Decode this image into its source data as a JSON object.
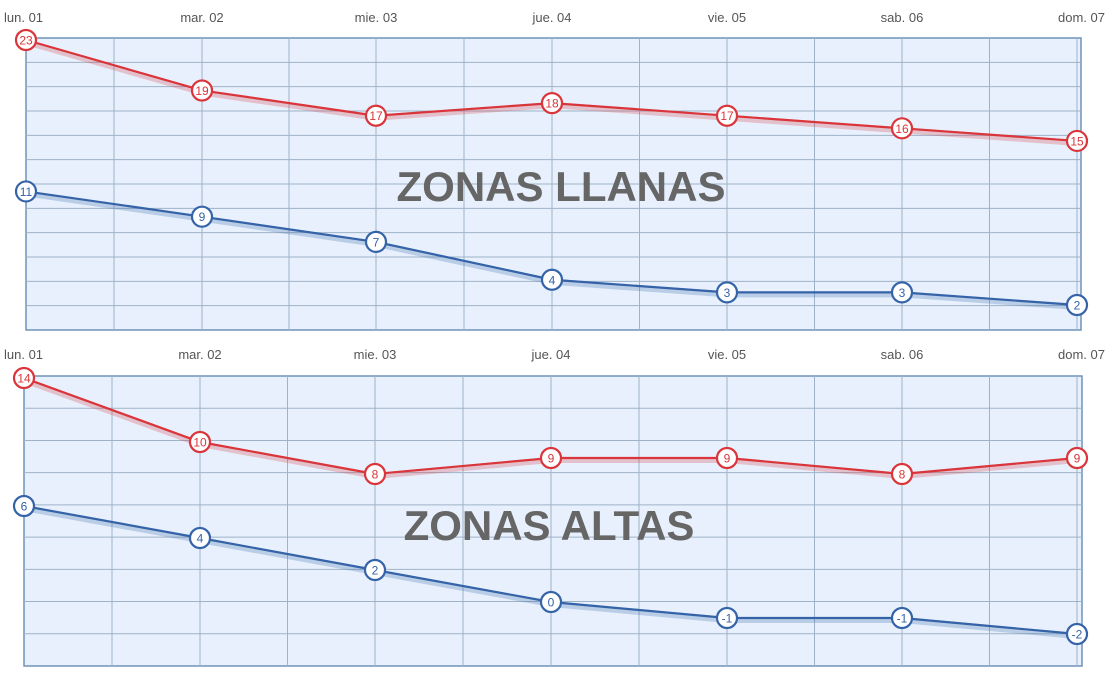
{
  "chart_data": [
    {
      "type": "line",
      "title": "ZONAS LLANAS",
      "categories": [
        "lun. 01",
        "mar. 02",
        "mie. 03",
        "jue. 04",
        "vie. 05",
        "sab. 06",
        "dom. 07"
      ],
      "ylim": [
        0,
        24
      ],
      "grid": true,
      "series": [
        {
          "color": "#d9353a",
          "values": [
            23,
            19,
            17,
            18,
            17,
            16,
            15
          ]
        },
        {
          "color": "#3563a8",
          "values": [
            11,
            9,
            7,
            4,
            3,
            3,
            2
          ]
        }
      ]
    },
    {
      "type": "line",
      "title": "ZONAS ALTAS",
      "categories": [
        "lun. 01",
        "mar. 02",
        "mie. 03",
        "jue. 04",
        "vie. 05",
        "sab. 06",
        "dom. 07"
      ],
      "ylim": [
        -2,
        14
      ],
      "grid": true,
      "series": [
        {
          "color": "#d9353a",
          "values": [
            14,
            10,
            8,
            9,
            9,
            8,
            9
          ]
        },
        {
          "color": "#3563a8",
          "values": [
            6,
            4,
            2,
            0,
            -1,
            -1,
            -2
          ]
        }
      ]
    }
  ]
}
